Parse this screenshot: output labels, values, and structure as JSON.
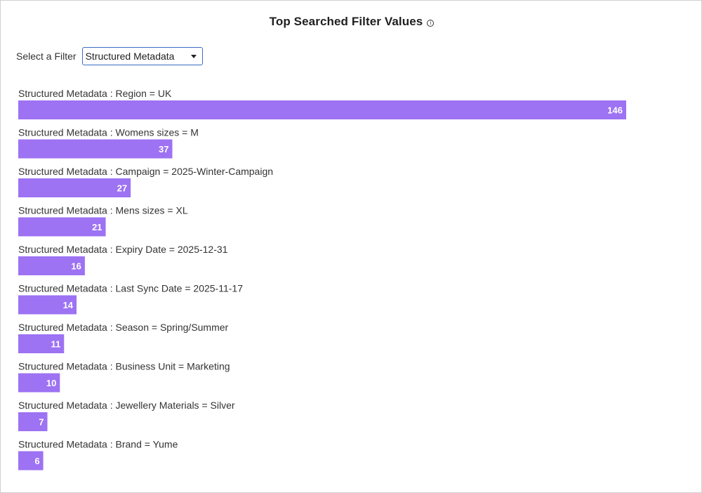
{
  "header": {
    "title": "Top Searched Filter Values",
    "info_icon": "info-icon"
  },
  "filter": {
    "label": "Select a Filter",
    "selected": "Structured Metadata"
  },
  "colors": {
    "bar": "#9d72f3",
    "select_border": "#3b6cc4"
  },
  "chart_data": {
    "type": "bar",
    "orientation": "horizontal",
    "categories": [
      "Structured Metadata : Region = UK",
      "Structured Metadata : Womens sizes = M",
      "Structured Metadata : Campaign = 2025-Winter-Campaign",
      "Structured Metadata : Mens sizes = XL",
      "Structured Metadata : Expiry Date = 2025-12-31",
      "Structured Metadata : Last Sync Date = 2025-11-17",
      "Structured Metadata : Season = Spring/Summer",
      "Structured Metadata : Business Unit = Marketing",
      "Structured Metadata : Jewellery Materials = Silver",
      "Structured Metadata : Brand = Yume"
    ],
    "values": [
      146,
      37,
      27,
      21,
      16,
      14,
      11,
      10,
      7,
      6
    ],
    "xlim": [
      0,
      146
    ],
    "grid": false,
    "data_labels": true
  }
}
